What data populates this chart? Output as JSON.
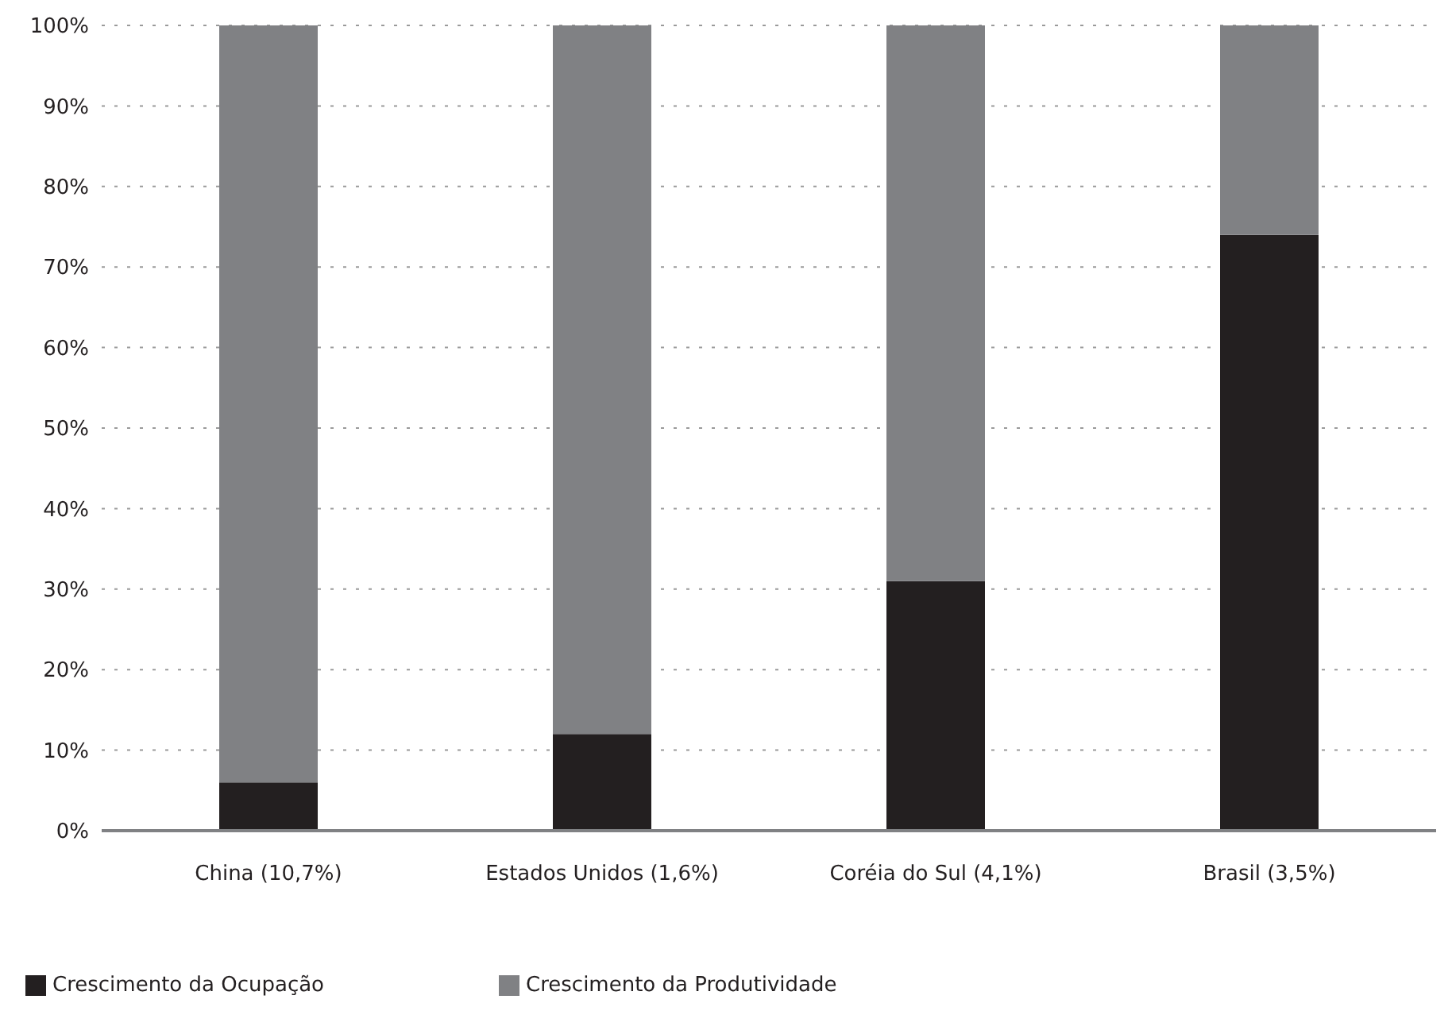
{
  "chart_data": {
    "type": "bar",
    "stacked": true,
    "categories": [
      "China (10,7%)",
      "Estados Unidos (1,6%)",
      "Coréia do Sul (4,1%)",
      "Brasil (3,5%)"
    ],
    "series": [
      {
        "name": "Crescimento da Ocupação",
        "color": "#231f20",
        "values": [
          6,
          12,
          31,
          74
        ]
      },
      {
        "name": "Crescimento da Produtividade",
        "color": "#808184",
        "values": [
          94,
          88,
          69,
          26
        ]
      }
    ],
    "ylim": [
      0,
      100
    ],
    "yticks": [
      {
        "value": 0,
        "label": "0%"
      },
      {
        "value": 10,
        "label": "10%"
      },
      {
        "value": 20,
        "label": "20%"
      },
      {
        "value": 30,
        "label": "30%"
      },
      {
        "value": 40,
        "label": "40%"
      },
      {
        "value": 50,
        "label": "50%"
      },
      {
        "value": 60,
        "label": "60%"
      },
      {
        "value": 70,
        "label": "70%"
      },
      {
        "value": 80,
        "label": "80%"
      },
      {
        "value": 90,
        "label": "90%"
      },
      {
        "value": 100,
        "label": "100%"
      }
    ],
    "grid": "y",
    "legend": "bottom left"
  }
}
